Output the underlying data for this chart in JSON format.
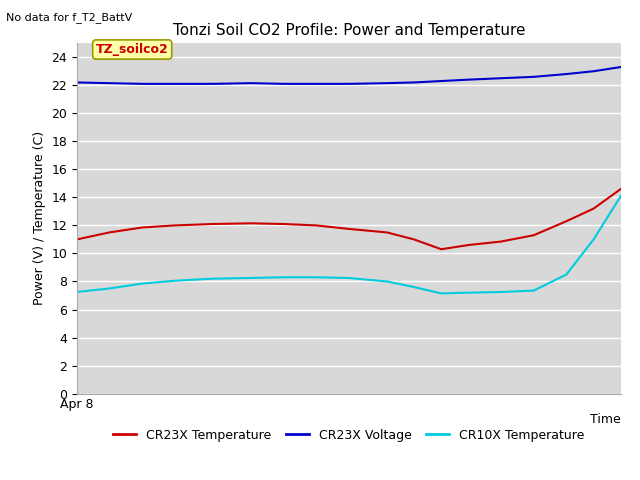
{
  "title": "Tonzi Soil CO2 Profile: Power and Temperature",
  "top_left_text": "No data for f_T2_BattV",
  "time_label": "Time",
  "ylabel": "Power (V) / Temperature (C)",
  "ylim": [
    0,
    25
  ],
  "yticks": [
    0,
    2,
    4,
    6,
    8,
    10,
    12,
    14,
    16,
    18,
    20,
    22,
    24
  ],
  "x_start_label": "Apr 8",
  "annotation_box": "TZ_soilco2",
  "background_color": "#d8d8d8",
  "series": {
    "CR23X Temperature": {
      "color": "#cc0000",
      "x": [
        0,
        0.06,
        0.12,
        0.18,
        0.25,
        0.32,
        0.38,
        0.44,
        0.5,
        0.57,
        0.62,
        0.67,
        0.72,
        0.78,
        0.84,
        0.9,
        0.95,
        1.0
      ],
      "y": [
        11.0,
        11.5,
        11.85,
        12.0,
        12.1,
        12.15,
        12.1,
        12.0,
        11.75,
        11.5,
        11.0,
        10.3,
        10.6,
        10.85,
        11.3,
        12.3,
        13.2,
        14.6
      ]
    },
    "CR23X Voltage": {
      "color": "#0000cc",
      "x": [
        0,
        0.06,
        0.12,
        0.18,
        0.25,
        0.32,
        0.38,
        0.44,
        0.5,
        0.57,
        0.62,
        0.67,
        0.72,
        0.78,
        0.84,
        0.9,
        0.95,
        1.0
      ],
      "y": [
        22.2,
        22.15,
        22.1,
        22.1,
        22.1,
        22.15,
        22.1,
        22.1,
        22.1,
        22.15,
        22.2,
        22.3,
        22.4,
        22.5,
        22.6,
        22.8,
        23.0,
        23.3
      ]
    },
    "CR10X Temperature": {
      "color": "#00ccdd",
      "x": [
        0,
        0.06,
        0.12,
        0.18,
        0.25,
        0.32,
        0.38,
        0.44,
        0.5,
        0.57,
        0.62,
        0.67,
        0.72,
        0.78,
        0.84,
        0.9,
        0.95,
        1.0
      ],
      "y": [
        7.25,
        7.5,
        7.85,
        8.05,
        8.2,
        8.25,
        8.3,
        8.3,
        8.25,
        8.0,
        7.6,
        7.15,
        7.2,
        7.25,
        7.35,
        8.5,
        11.0,
        14.1
      ]
    }
  },
  "legend_entries": [
    {
      "label": "CR23X Temperature",
      "color": "#cc0000"
    },
    {
      "label": "CR23X Voltage",
      "color": "#0000cc"
    },
    {
      "label": "CR10X Temperature",
      "color": "#00ccdd"
    }
  ],
  "title_fontsize": 11,
  "label_fontsize": 9,
  "tick_fontsize": 9
}
